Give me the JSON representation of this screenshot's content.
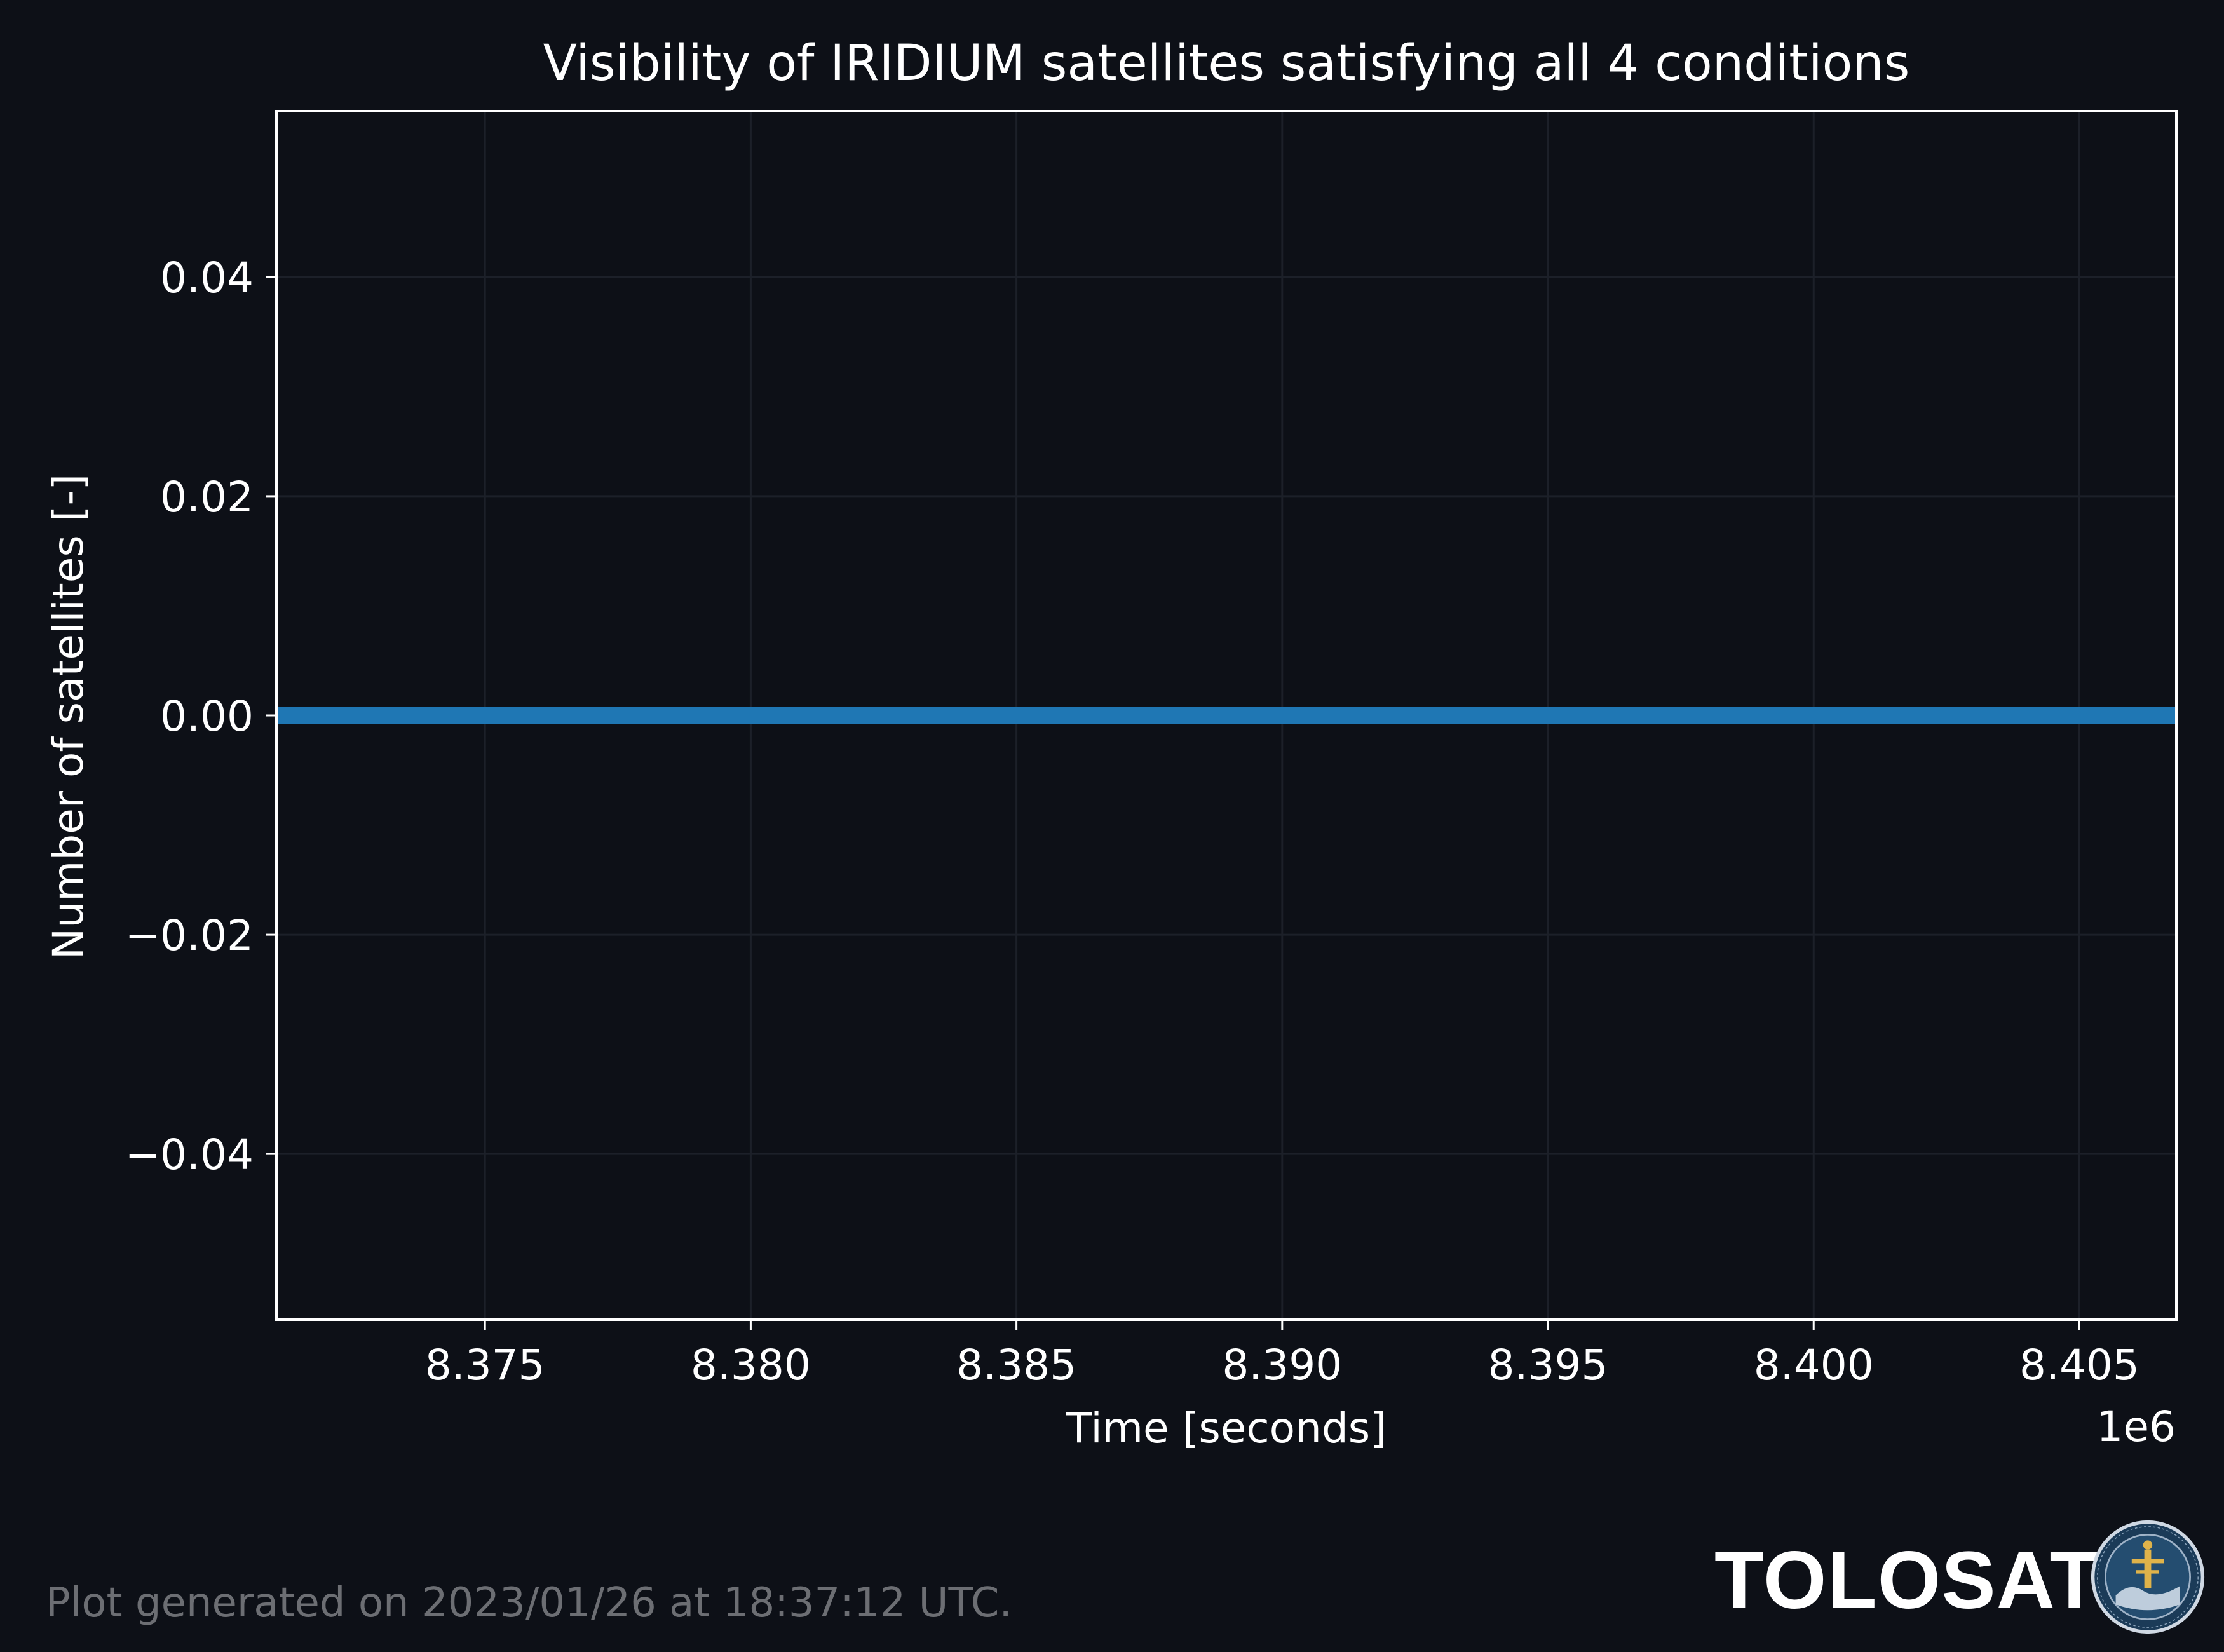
{
  "chart_data": {
    "type": "line",
    "title": "Visibility of IRIDIUM satellites satisfying all 4 conditions",
    "xlabel": "Time [seconds]",
    "ylabel": "Number of satellites [-]",
    "x_offset_label": "1e6",
    "xlim": [
      8.3711,
      8.4068
    ],
    "ylim": [
      -0.055,
      0.055
    ],
    "x_ticks": [
      8.375,
      8.38,
      8.385,
      8.39,
      8.395,
      8.4,
      8.405
    ],
    "x_tick_labels": [
      "8.375",
      "8.380",
      "8.385",
      "8.390",
      "8.395",
      "8.400",
      "8.405"
    ],
    "y_ticks": [
      0.04,
      0.02,
      0.0,
      -0.02,
      -0.04
    ],
    "y_tick_labels": [
      "0.04",
      "0.02",
      "0.00",
      "−0.02",
      "−0.04"
    ],
    "grid": true,
    "series": [
      {
        "x": [
          8.3711,
          8.4068
        ],
        "values": [
          0,
          0
        ],
        "color": "#1f77b4"
      }
    ]
  },
  "footer": {
    "note": "Plot generated on 2023/01/26 at 18:37:12 UTC.",
    "brand": "TOLOSAT",
    "logo_icon": "tolosat-seal-icon"
  },
  "colors": {
    "background": "#0d1017",
    "axes": "#ffffff",
    "grid": "#1c2029",
    "line": "#1f77b4"
  }
}
